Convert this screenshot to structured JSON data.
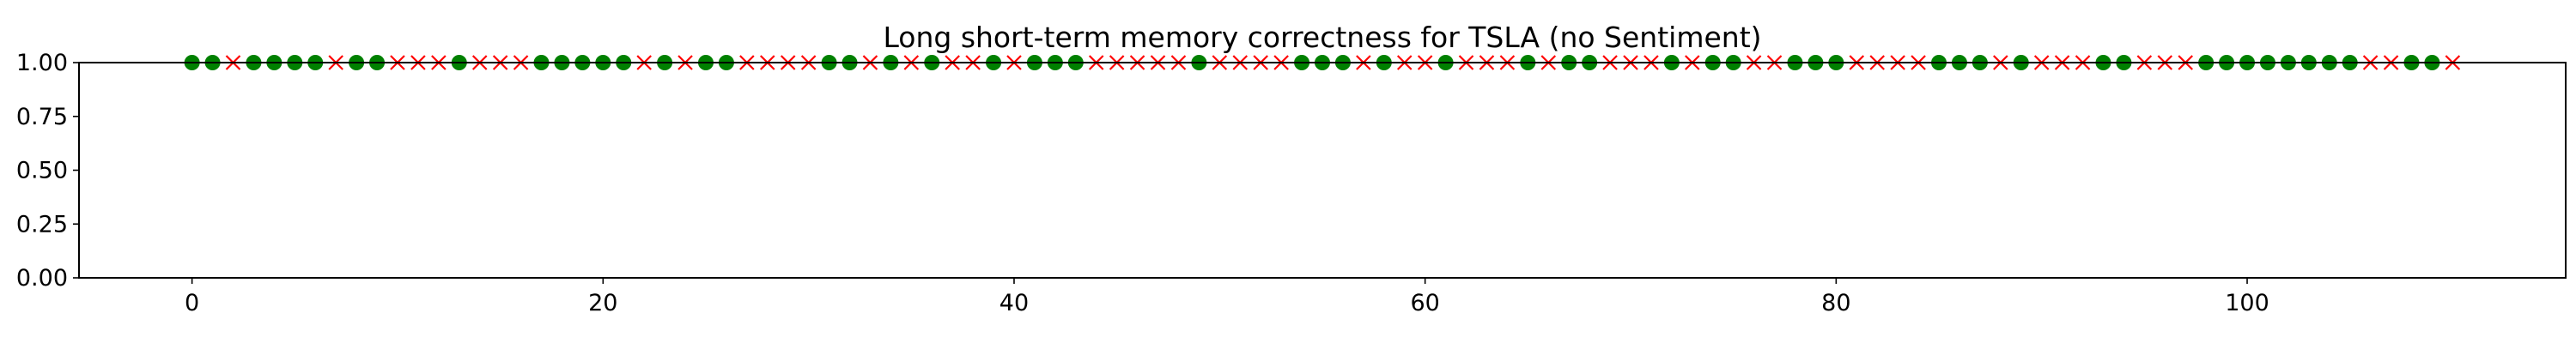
{
  "chart_data": {
    "type": "scatter",
    "title": "Long short-term memory correctness for TSLA (no Sentiment)",
    "xlabel": "",
    "ylabel": "",
    "xlim": [
      -5.5,
      115.5
    ],
    "ylim": [
      0,
      1
    ],
    "x_ticks": [
      0,
      20,
      40,
      60,
      80,
      100
    ],
    "x_tick_labels": [
      "0",
      "20",
      "40",
      "60",
      "80",
      "100"
    ],
    "y_ticks": [
      0,
      0.25,
      0.5,
      0.75,
      1
    ],
    "y_tick_labels": [
      "0.00",
      "0.25",
      "0.50",
      "0.75",
      "1.00"
    ],
    "grid": false,
    "legend": "none",
    "series": [
      {
        "marker": "circle",
        "color": "#008000",
        "x": [
          0,
          1,
          3,
          4,
          5,
          6,
          8,
          9,
          13,
          17,
          18,
          19,
          20,
          21,
          23,
          25,
          26,
          31,
          32,
          34,
          36,
          39,
          41,
          42,
          43,
          49,
          54,
          55,
          56,
          58,
          61,
          65,
          67,
          68,
          72,
          74,
          75,
          78,
          79,
          80,
          85,
          86,
          87,
          89,
          93,
          94,
          98,
          99,
          100,
          101,
          102,
          103,
          104,
          105,
          108,
          109
        ],
        "y": [
          1,
          1,
          1,
          1,
          1,
          1,
          1,
          1,
          1,
          1,
          1,
          1,
          1,
          1,
          1,
          1,
          1,
          1,
          1,
          1,
          1,
          1,
          1,
          1,
          1,
          1,
          1,
          1,
          1,
          1,
          1,
          1,
          1,
          1,
          1,
          1,
          1,
          1,
          1,
          1,
          1,
          1,
          1,
          1,
          1,
          1,
          1,
          1,
          1,
          1,
          1,
          1,
          1,
          1,
          1,
          1
        ]
      },
      {
        "marker": "x",
        "color": "#ff0000",
        "x": [
          2,
          7,
          10,
          11,
          12,
          14,
          15,
          16,
          22,
          24,
          27,
          28,
          29,
          30,
          33,
          35,
          37,
          38,
          40,
          44,
          45,
          46,
          47,
          48,
          50,
          51,
          52,
          53,
          57,
          59,
          60,
          62,
          63,
          64,
          66,
          69,
          70,
          71,
          73,
          76,
          77,
          81,
          82,
          83,
          84,
          88,
          90,
          91,
          92,
          95,
          96,
          97,
          106,
          107,
          110
        ],
        "y": [
          1,
          1,
          1,
          1,
          1,
          1,
          1,
          1,
          1,
          1,
          1,
          1,
          1,
          1,
          1,
          1,
          1,
          1,
          1,
          1,
          1,
          1,
          1,
          1,
          1,
          1,
          1,
          1,
          1,
          1,
          1,
          1,
          1,
          1,
          1,
          1,
          1,
          1,
          1,
          1,
          1,
          1,
          1,
          1,
          1,
          1,
          1,
          1,
          1,
          1,
          1,
          1,
          1,
          1,
          1
        ]
      }
    ]
  }
}
